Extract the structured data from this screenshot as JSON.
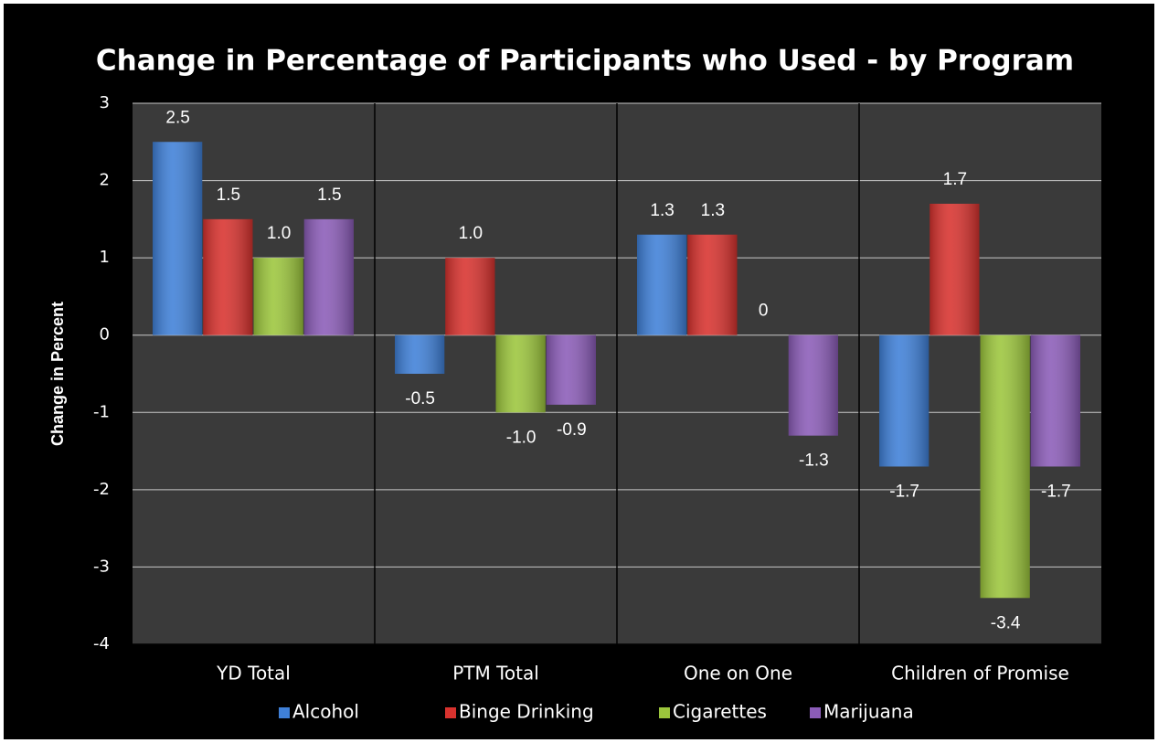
{
  "chart_data": {
    "type": "bar",
    "title": "Change in Percentage of Participants who Used - by Program",
    "y_label": "Change in Percent",
    "categories": [
      "YD Total",
      "PTM Total",
      "One on One",
      "Children of Promise"
    ],
    "series": [
      {
        "name": "Alcohol",
        "color": "#3f80d8",
        "values": [
          2.5,
          -0.5,
          1.3,
          -1.7
        ],
        "value_labels": [
          "2.5",
          "-0.5",
          "1.3",
          "-1.7"
        ]
      },
      {
        "name": "Binge Drinking",
        "color": "#d8322e",
        "values": [
          1.5,
          1.0,
          1.3,
          1.7
        ],
        "value_labels": [
          "1.5",
          "1.0",
          "1.3",
          "1.7"
        ]
      },
      {
        "name": "Cigarettes",
        "color": "#9cc63c",
        "values": [
          1.0,
          -1.0,
          0,
          -3.4
        ],
        "value_labels": [
          "1.0",
          "-1.0",
          "0",
          "-3.4"
        ]
      },
      {
        "name": "Marijuana",
        "color": "#8b5cb8",
        "values": [
          1.5,
          -0.9,
          -1.3,
          -1.7
        ],
        "value_labels": [
          "1.5",
          "-0.9",
          "-1.3",
          "-1.7"
        ]
      }
    ],
    "ylim": [
      -4,
      3
    ],
    "yticks": [
      -4,
      -3,
      -2,
      -1,
      0,
      1,
      2,
      3
    ],
    "grid": true,
    "legend": "bottom"
  }
}
